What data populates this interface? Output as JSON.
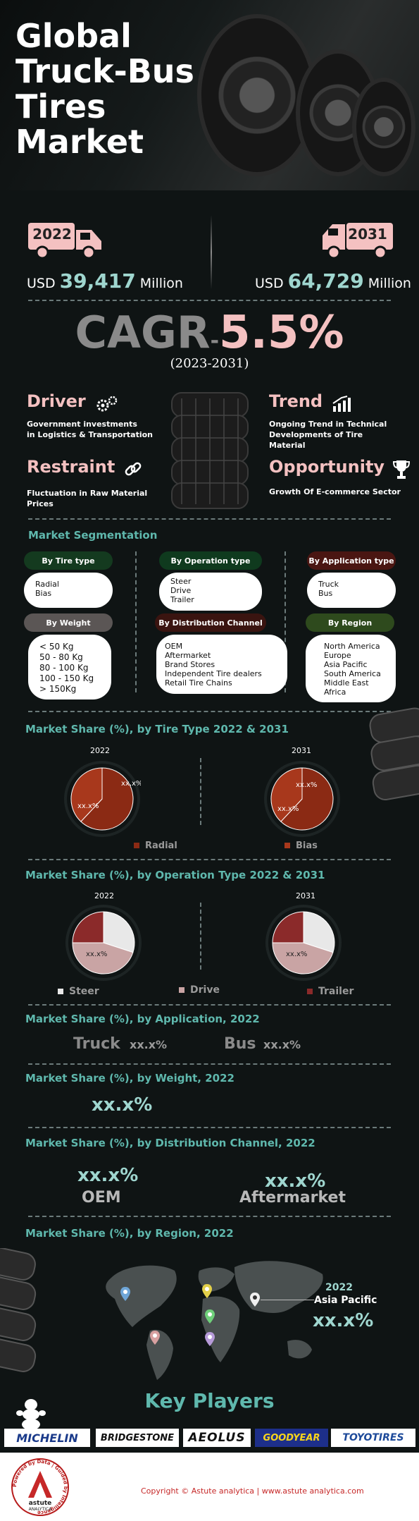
{
  "hero": {
    "title_lines": [
      "Global",
      "Truck-Bus",
      "Tires",
      "Market"
    ]
  },
  "years": {
    "start": {
      "year": "2022",
      "prefix": "USD",
      "value": "39,417",
      "unit": "Million"
    },
    "end": {
      "year": "2031",
      "prefix": "USD",
      "value": "64,729",
      "unit": "Million"
    }
  },
  "cagr": {
    "label": "CAGR",
    "sep": "-",
    "value": "5.5%",
    "period": "(2023-2031)"
  },
  "dynamics": {
    "driver": {
      "title": "Driver",
      "text_lines": [
        "Government investments",
        "in Logistics & Transportation"
      ],
      "icon": "gears-icon"
    },
    "trend": {
      "title": "Trend",
      "text_lines": [
        "Ongoing Trend in Technical",
        "Developments of Tire",
        "Material"
      ],
      "icon": "bar-chart-icon"
    },
    "restraint": {
      "title": "Restraint",
      "text_lines": [
        "Fluctuation in Raw Material",
        "Prices"
      ],
      "icon": "chain-link-icon"
    },
    "opportunity": {
      "title": "Opportunity",
      "text_lines": [
        "Growth Of E-commerce Sector"
      ],
      "icon": "trophy-icon"
    }
  },
  "segmentation": {
    "title": "Market Segmentation",
    "tire_type": {
      "label": "By Tire type",
      "items": [
        "Radial",
        "Bias"
      ]
    },
    "operation_type": {
      "label": "By Operation type",
      "items": [
        "Steer",
        "Drive",
        "Trailer"
      ]
    },
    "application_type": {
      "label": "By Application type",
      "items": [
        "Truck",
        "Bus"
      ]
    },
    "weight": {
      "label": "By Weight",
      "items": [
        "< 50 Kg",
        "50 - 80 Kg",
        "80 - 100 Kg",
        "100 - 150 Kg",
        "> 150Kg"
      ]
    },
    "distribution": {
      "label": "By Distribution Channel",
      "items": [
        "OEM",
        "Aftermarket",
        "Brand Stores",
        "Independent Tire dealers",
        "Retail Tire Chains"
      ]
    },
    "region": {
      "label": "By Region",
      "items": [
        "North America",
        "Europe",
        "Asia Pacific",
        "South America",
        "Middle East",
        "Africa"
      ]
    }
  },
  "tire_type_share": {
    "title": "Market Share (%), by Tire Type  2022 & 2031",
    "year_a": "2022",
    "year_b": "2031",
    "labels_a": [
      "xx.x%",
      "xx.x%"
    ],
    "labels_b": [
      "xx.x%",
      "xx.x%"
    ],
    "legend": [
      "Radial",
      "Bias"
    ],
    "colors": [
      "#8b2a14",
      "#a8381c"
    ]
  },
  "operation_share": {
    "title": "Market Share (%), by Operation Type  2022 & 2031",
    "year_a": "2022",
    "year_b": "2031",
    "label_a": "xx.x%",
    "label_b": "xx.x%",
    "legend": [
      "Steer",
      "Drive",
      "Trailer"
    ],
    "colors": [
      "#e8e8e8",
      "#c9a4a4",
      "#8b2a2a"
    ]
  },
  "application_share": {
    "title": "Market Share (%), by Application, 2022",
    "items": [
      {
        "name": "Truck",
        "value": "xx.x%"
      },
      {
        "name": "Bus",
        "value": "xx.x%"
      }
    ]
  },
  "weight_share": {
    "title": "Market Share (%), by Weight, 2022",
    "value": "xx.x%"
  },
  "distribution_share": {
    "title": "Market Share (%), by Distribution Channel, 2022",
    "items": [
      {
        "name": "OEM",
        "value": "xx.x%"
      },
      {
        "name": "Aftermarket",
        "value": "xx.x%"
      }
    ]
  },
  "region_share": {
    "title": "Market Share (%), by Region, 2022",
    "year": "2022",
    "region": "Asia Pacific",
    "value": "xx.x%",
    "pin_colors": [
      "#6fa6d8",
      "#e3d04a",
      "#f0f0f0",
      "#6fd07a",
      "#d8a0a0",
      "#b69ad8"
    ]
  },
  "key_players": {
    "title": "Key Players",
    "logos": [
      "MICHELIN",
      "BRIDGESTONE",
      "AEOLUS",
      "GOODYEAR",
      "TOYOTIRES"
    ]
  },
  "footer": {
    "brand": "astute",
    "brand_sub": "ANALYTICA",
    "ring_text": "Powered by Data | Guided by Intelligence",
    "copyright": "Copyright © Astute analytica | www.astute analytica.com"
  }
}
